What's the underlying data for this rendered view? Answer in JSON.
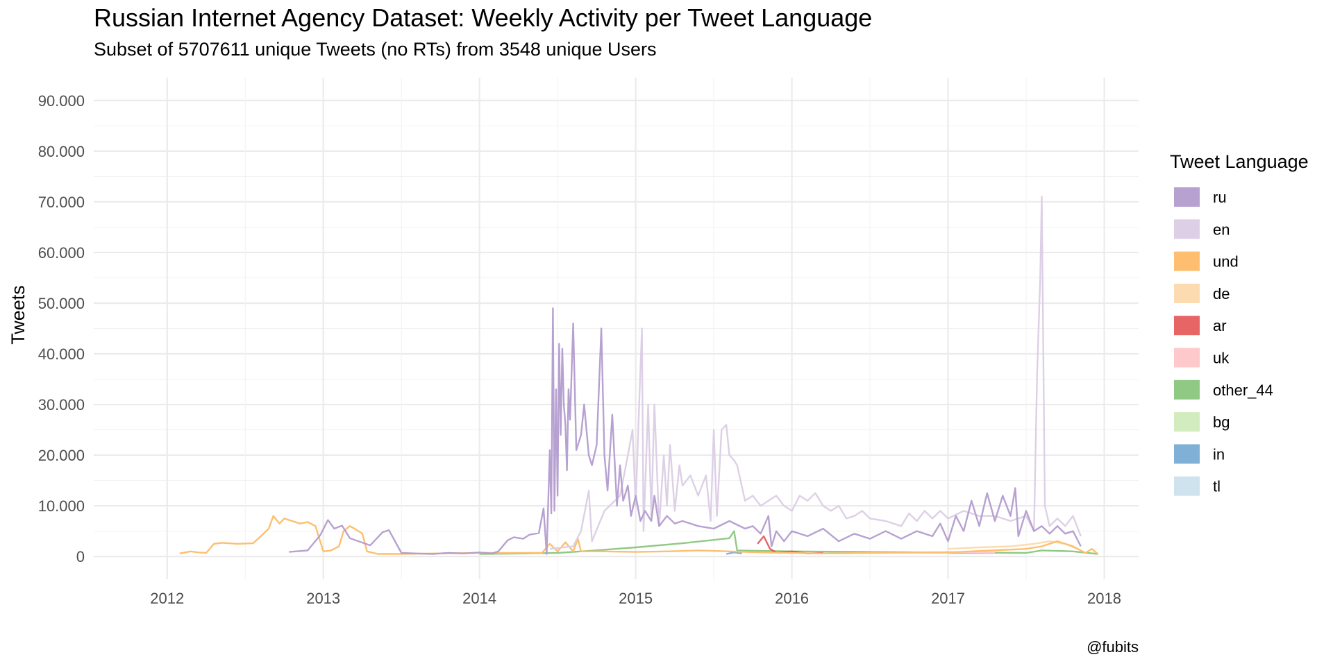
{
  "chart_data": {
    "type": "line",
    "title": "Russian Internet Agency Dataset: Weekly Activity per Tweet Language",
    "subtitle": "Subset of 5707611 unique Tweets (no RTs) from 3548 unique Users",
    "xlabel": "",
    "ylabel": "Tweets",
    "caption": "@fubits",
    "xlim": [
      2011.53,
      2018.22
    ],
    "ylim": [
      -4500,
      94500
    ],
    "x_ticks": [
      2012,
      2013,
      2014,
      2015,
      2016,
      2017,
      2018
    ],
    "x_tick_labels": [
      "2012",
      "2013",
      "2014",
      "2015",
      "2016",
      "2017",
      "2018"
    ],
    "y_ticks": [
      0,
      10000,
      20000,
      30000,
      40000,
      50000,
      60000,
      70000,
      80000,
      90000
    ],
    "y_tick_labels": [
      "0",
      "10.000",
      "20.000",
      "30.000",
      "40.000",
      "50.000",
      "60.000",
      "70.000",
      "80.000",
      "90.000"
    ],
    "grid": true,
    "legend": {
      "title": "Tweet Language",
      "position": "right"
    },
    "series": [
      {
        "name": "ru",
        "color": "#b39ccf",
        "opacity": 0.95,
        "points": [
          [
            2012.78,
            900
          ],
          [
            2012.9,
            1200
          ],
          [
            2012.98,
            4200
          ],
          [
            2013.03,
            7200
          ],
          [
            2013.07,
            5500
          ],
          [
            2013.12,
            6100
          ],
          [
            2013.17,
            3600
          ],
          [
            2013.3,
            2200
          ],
          [
            2013.38,
            4800
          ],
          [
            2013.42,
            5200
          ],
          [
            2013.5,
            700
          ],
          [
            2013.6,
            600
          ],
          [
            2013.7,
            500
          ],
          [
            2013.8,
            700
          ],
          [
            2013.9,
            600
          ],
          [
            2014.0,
            800
          ],
          [
            2014.08,
            600
          ],
          [
            2014.12,
            1000
          ],
          [
            2014.18,
            3200
          ],
          [
            2014.22,
            3800
          ],
          [
            2014.28,
            3500
          ],
          [
            2014.32,
            4300
          ],
          [
            2014.38,
            4600
          ],
          [
            2014.41,
            9500
          ],
          [
            2014.43,
            500
          ],
          [
            2014.45,
            21000
          ],
          [
            2014.46,
            8500
          ],
          [
            2014.47,
            49000
          ],
          [
            2014.48,
            9000
          ],
          [
            2014.49,
            33000
          ],
          [
            2014.5,
            12000
          ],
          [
            2014.51,
            42000
          ],
          [
            2014.52,
            24000
          ],
          [
            2014.53,
            41000
          ],
          [
            2014.54,
            30000
          ],
          [
            2014.55,
            26000
          ],
          [
            2014.56,
            17000
          ],
          [
            2014.57,
            33000
          ],
          [
            2014.58,
            27000
          ],
          [
            2014.6,
            46000
          ],
          [
            2014.62,
            21000
          ],
          [
            2014.65,
            24000
          ],
          [
            2014.67,
            30000
          ],
          [
            2014.7,
            20000
          ],
          [
            2014.72,
            18000
          ],
          [
            2014.75,
            22000
          ],
          [
            2014.78,
            45000
          ],
          [
            2014.8,
            20000
          ],
          [
            2014.82,
            13000
          ],
          [
            2014.85,
            28000
          ],
          [
            2014.88,
            10000
          ],
          [
            2014.9,
            18000
          ],
          [
            2014.92,
            11000
          ],
          [
            2014.95,
            14000
          ],
          [
            2014.97,
            8000
          ],
          [
            2015.0,
            12000
          ],
          [
            2015.03,
            7000
          ],
          [
            2015.06,
            9000
          ],
          [
            2015.1,
            7000
          ],
          [
            2015.12,
            12000
          ],
          [
            2015.15,
            6000
          ],
          [
            2015.2,
            8000
          ],
          [
            2015.25,
            6500
          ],
          [
            2015.3,
            7000
          ],
          [
            2015.4,
            6000
          ],
          [
            2015.5,
            5500
          ],
          [
            2015.6,
            7000
          ],
          [
            2015.7,
            5500
          ],
          [
            2015.75,
            6000
          ],
          [
            2015.8,
            4500
          ],
          [
            2015.85,
            8000
          ],
          [
            2015.87,
            2000
          ],
          [
            2015.9,
            5000
          ],
          [
            2015.95,
            3000
          ],
          [
            2016.0,
            5000
          ],
          [
            2016.1,
            4000
          ],
          [
            2016.2,
            5500
          ],
          [
            2016.3,
            3000
          ],
          [
            2016.4,
            4500
          ],
          [
            2016.5,
            3500
          ],
          [
            2016.6,
            5000
          ],
          [
            2016.7,
            3500
          ],
          [
            2016.8,
            5000
          ],
          [
            2016.9,
            4000
          ],
          [
            2016.95,
            6500
          ],
          [
            2017.0,
            3000
          ],
          [
            2017.05,
            8000
          ],
          [
            2017.1,
            5000
          ],
          [
            2017.15,
            11000
          ],
          [
            2017.2,
            6000
          ],
          [
            2017.25,
            12500
          ],
          [
            2017.3,
            7000
          ],
          [
            2017.35,
            12000
          ],
          [
            2017.4,
            8000
          ],
          [
            2017.43,
            13500
          ],
          [
            2017.45,
            4000
          ],
          [
            2017.5,
            9000
          ],
          [
            2017.55,
            5000
          ],
          [
            2017.6,
            6000
          ],
          [
            2017.65,
            4500
          ],
          [
            2017.7,
            6000
          ],
          [
            2017.75,
            4500
          ],
          [
            2017.8,
            5000
          ],
          [
            2017.85,
            2000
          ]
        ]
      },
      {
        "name": "en",
        "color": "#ddd0e6",
        "opacity": 1.0,
        "points": [
          [
            2014.45,
            1500
          ],
          [
            2014.6,
            2000
          ],
          [
            2014.65,
            5000
          ],
          [
            2014.7,
            13000
          ],
          [
            2014.72,
            3000
          ],
          [
            2014.8,
            9000
          ],
          [
            2014.9,
            12000
          ],
          [
            2014.95,
            20000
          ],
          [
            2014.98,
            25000
          ],
          [
            2015.0,
            10000
          ],
          [
            2015.02,
            28000
          ],
          [
            2015.04,
            45000
          ],
          [
            2015.05,
            5000
          ],
          [
            2015.08,
            30000
          ],
          [
            2015.1,
            8000
          ],
          [
            2015.12,
            30000
          ],
          [
            2015.15,
            6000
          ],
          [
            2015.18,
            20000
          ],
          [
            2015.2,
            10000
          ],
          [
            2015.22,
            22000
          ],
          [
            2015.25,
            9000
          ],
          [
            2015.28,
            18000
          ],
          [
            2015.3,
            14000
          ],
          [
            2015.35,
            16000
          ],
          [
            2015.4,
            12000
          ],
          [
            2015.45,
            16000
          ],
          [
            2015.48,
            7000
          ],
          [
            2015.5,
            25000
          ],
          [
            2015.52,
            8000
          ],
          [
            2015.55,
            25000
          ],
          [
            2015.58,
            26000
          ],
          [
            2015.6,
            20000
          ],
          [
            2015.63,
            19000
          ],
          [
            2015.65,
            18000
          ],
          [
            2015.7,
            11000
          ],
          [
            2015.75,
            12000
          ],
          [
            2015.8,
            10000
          ],
          [
            2015.85,
            11000
          ],
          [
            2015.9,
            12000
          ],
          [
            2015.95,
            10000
          ],
          [
            2016.0,
            9000
          ],
          [
            2016.05,
            12000
          ],
          [
            2016.1,
            11000
          ],
          [
            2016.15,
            12500
          ],
          [
            2016.2,
            10000
          ],
          [
            2016.25,
            9000
          ],
          [
            2016.3,
            10000
          ],
          [
            2016.35,
            7500
          ],
          [
            2016.4,
            8000
          ],
          [
            2016.45,
            9000
          ],
          [
            2016.5,
            7500
          ],
          [
            2016.6,
            7000
          ],
          [
            2016.7,
            6000
          ],
          [
            2016.75,
            8500
          ],
          [
            2016.8,
            7000
          ],
          [
            2016.85,
            9000
          ],
          [
            2016.9,
            7500
          ],
          [
            2016.95,
            9000
          ],
          [
            2017.0,
            7500
          ],
          [
            2017.1,
            9000
          ],
          [
            2017.2,
            8000
          ],
          [
            2017.3,
            8000
          ],
          [
            2017.4,
            7000
          ],
          [
            2017.5,
            8000
          ],
          [
            2017.55,
            5000
          ],
          [
            2017.57,
            36000
          ],
          [
            2017.59,
            55000
          ],
          [
            2017.6,
            71000
          ],
          [
            2017.62,
            10000
          ],
          [
            2017.65,
            6000
          ],
          [
            2017.7,
            7500
          ],
          [
            2017.75,
            6000
          ],
          [
            2017.8,
            8000
          ],
          [
            2017.85,
            4000
          ]
        ]
      },
      {
        "name": "und",
        "color": "#fdbf6f",
        "opacity": 1.0,
        "points": [
          [
            2012.08,
            600
          ],
          [
            2012.15,
            1000
          ],
          [
            2012.2,
            800
          ],
          [
            2012.25,
            700
          ],
          [
            2012.3,
            2500
          ],
          [
            2012.35,
            2700
          ],
          [
            2012.45,
            2500
          ],
          [
            2012.55,
            2600
          ],
          [
            2012.6,
            4000
          ],
          [
            2012.65,
            5500
          ],
          [
            2012.68,
            8000
          ],
          [
            2012.72,
            6500
          ],
          [
            2012.75,
            7500
          ],
          [
            2012.8,
            7000
          ],
          [
            2012.85,
            6500
          ],
          [
            2012.9,
            6800
          ],
          [
            2012.95,
            6000
          ],
          [
            2013.0,
            1000
          ],
          [
            2013.05,
            1200
          ],
          [
            2013.1,
            2000
          ],
          [
            2013.13,
            5000
          ],
          [
            2013.17,
            6000
          ],
          [
            2013.2,
            5500
          ],
          [
            2013.25,
            4500
          ],
          [
            2013.28,
            1000
          ],
          [
            2013.35,
            500
          ],
          [
            2013.5,
            500
          ],
          [
            2013.7,
            600
          ],
          [
            2014.0,
            700
          ],
          [
            2014.4,
            700
          ],
          [
            2014.45,
            2500
          ],
          [
            2014.5,
            1000
          ],
          [
            2014.55,
            2800
          ],
          [
            2014.6,
            1000
          ],
          [
            2014.63,
            3500
          ],
          [
            2014.65,
            1000
          ],
          [
            2014.8,
            1000
          ],
          [
            2015.0,
            900
          ],
          [
            2015.2,
            1000
          ],
          [
            2015.4,
            1200
          ],
          [
            2015.6,
            1000
          ],
          [
            2015.8,
            800
          ],
          [
            2016.0,
            700
          ],
          [
            2016.2,
            600
          ],
          [
            2016.5,
            700
          ],
          [
            2017.0,
            800
          ],
          [
            2017.5,
            1500
          ],
          [
            2017.6,
            2000
          ],
          [
            2017.7,
            3000
          ],
          [
            2017.8,
            2000
          ],
          [
            2017.88,
            700
          ],
          [
            2017.92,
            1500
          ],
          [
            2017.96,
            500
          ]
        ]
      },
      {
        "name": "de",
        "color": "#fddbb0",
        "opacity": 1.0,
        "points": [
          [
            2017.0,
            1500
          ],
          [
            2017.2,
            1800
          ],
          [
            2017.4,
            2000
          ],
          [
            2017.55,
            2500
          ],
          [
            2017.65,
            3000
          ],
          [
            2017.75,
            2500
          ],
          [
            2017.85,
            1200
          ]
        ]
      },
      {
        "name": "ar",
        "color": "#e34a4a",
        "opacity": 0.85,
        "points": [
          [
            2015.78,
            2500
          ],
          [
            2015.82,
            4000
          ],
          [
            2015.86,
            1500
          ],
          [
            2015.9,
            800
          ],
          [
            2016.0,
            1000
          ],
          [
            2016.1,
            600
          ],
          [
            2016.2,
            700
          ]
        ]
      },
      {
        "name": "uk",
        "color": "#fdc9cb",
        "opacity": 1.0,
        "points": [
          [
            2016.5,
            700
          ],
          [
            2016.8,
            800
          ],
          [
            2017.0,
            900
          ],
          [
            2017.3,
            800
          ]
        ]
      },
      {
        "name": "other_44",
        "color": "#7cbf6e",
        "opacity": 0.85,
        "points": [
          [
            2014.0,
            500
          ],
          [
            2014.3,
            600
          ],
          [
            2014.5,
            700
          ],
          [
            2014.7,
            1100
          ],
          [
            2015.0,
            1800
          ],
          [
            2015.3,
            2600
          ],
          [
            2015.6,
            3600
          ],
          [
            2015.63,
            5000
          ],
          [
            2015.65,
            1200
          ],
          [
            2015.8,
            1100
          ],
          [
            2016.0,
            1000
          ],
          [
            2016.5,
            900
          ],
          [
            2017.0,
            800
          ],
          [
            2017.5,
            700
          ],
          [
            2017.6,
            1200
          ],
          [
            2017.8,
            1000
          ],
          [
            2017.96,
            500
          ]
        ]
      },
      {
        "name": "bg",
        "color": "#d3ecbf",
        "opacity": 1.0,
        "points": [
          [
            2016.4,
            700
          ],
          [
            2016.7,
            800
          ],
          [
            2017.0,
            700
          ]
        ]
      },
      {
        "name": "in",
        "color": "#80b0d6",
        "opacity": 1.0,
        "points": [
          [
            2015.58,
            500
          ],
          [
            2015.63,
            800
          ],
          [
            2015.68,
            600
          ]
        ]
      },
      {
        "name": "tl",
        "color": "#cfe3ef",
        "opacity": 1.0,
        "points": [
          [
            2017.0,
            600
          ],
          [
            2017.3,
            700
          ]
        ]
      }
    ]
  }
}
